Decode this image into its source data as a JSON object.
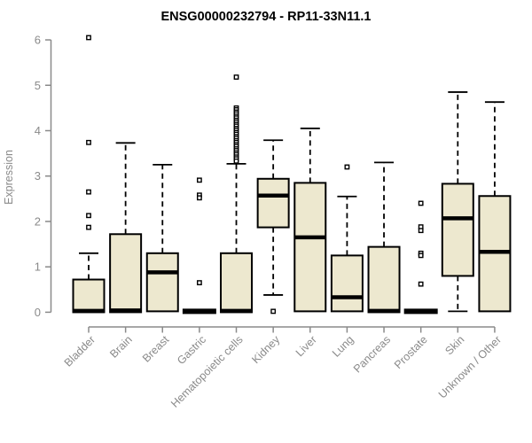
{
  "chart_data": {
    "type": "boxplot",
    "title": "ENSG00000232794 - RP11-33N11.1",
    "ylabel": "Expression",
    "ylim": [
      0,
      6
    ],
    "yticks": [
      0,
      1,
      2,
      3,
      4,
      5,
      6
    ],
    "grid": false,
    "legend": "none",
    "categories": [
      "Bladder",
      "Brain",
      "Breast",
      "Gastric",
      "Hematopoietic cells",
      "Kidney",
      "Liver",
      "Lung",
      "Pancreas",
      "Prostate",
      "Skin",
      "Unknown / Other"
    ],
    "series": [
      {
        "name": "Bladder",
        "whisker_low": 0,
        "q1": 0,
        "median": 0.03,
        "q3": 0.72,
        "whisker_high": 1.3,
        "outliers": [
          6.05,
          3.74,
          2.65,
          2.13,
          1.87
        ]
      },
      {
        "name": "Brain",
        "whisker_low": 0,
        "q1": 0,
        "median": 0.04,
        "q3": 1.72,
        "whisker_high": 3.73,
        "outliers": []
      },
      {
        "name": "Breast",
        "whisker_low": 0.02,
        "q1": 0.02,
        "median": 0.88,
        "q3": 1.3,
        "whisker_high": 3.25,
        "outliers": []
      },
      {
        "name": "Gastric",
        "whisker_low": 0.02,
        "q1": 0.02,
        "median": 0.02,
        "q3": 0.02,
        "whisker_high": 0.02,
        "outliers": [
          2.91,
          2.58,
          2.52,
          0.65
        ]
      },
      {
        "name": "Hematopoietic cells",
        "whisker_low": 0,
        "q1": 0,
        "median": 0.03,
        "q3": 1.3,
        "whisker_high": 3.27,
        "outliers": [
          5.18,
          4.5,
          4.46,
          4.41,
          4.37,
          4.32,
          4.28,
          4.23,
          4.19,
          4.14,
          4.1,
          4.05,
          4.01,
          3.96,
          3.92,
          3.87,
          3.83,
          3.78,
          3.74,
          3.69,
          3.65,
          3.6,
          3.56,
          3.51,
          3.47,
          3.42,
          3.38,
          3.33
        ]
      },
      {
        "name": "Kidney",
        "whisker_low": 0.38,
        "q1": 1.87,
        "median": 2.57,
        "q3": 2.94,
        "whisker_high": 3.79,
        "outliers": [
          0.02
        ]
      },
      {
        "name": "Liver",
        "whisker_low": 0.02,
        "q1": 0.02,
        "median": 1.65,
        "q3": 2.85,
        "whisker_high": 4.05,
        "outliers": []
      },
      {
        "name": "Lung",
        "whisker_low": 0.02,
        "q1": 0.02,
        "median": 0.33,
        "q3": 1.25,
        "whisker_high": 2.55,
        "outliers": [
          3.2
        ]
      },
      {
        "name": "Pancreas",
        "whisker_low": 0,
        "q1": 0,
        "median": 0.03,
        "q3": 1.44,
        "whisker_high": 3.3,
        "outliers": []
      },
      {
        "name": "Prostate",
        "whisker_low": 0.02,
        "q1": 0.02,
        "median": 0.02,
        "q3": 0.02,
        "whisker_high": 0.02,
        "outliers": [
          2.4,
          1.88,
          1.8,
          1.3,
          1.25,
          0.62
        ]
      },
      {
        "name": "Skin",
        "whisker_low": 0.02,
        "q1": 0.8,
        "median": 2.07,
        "q3": 2.83,
        "whisker_high": 4.85,
        "outliers": []
      },
      {
        "name": "Unknown / Other",
        "whisker_low": 0.02,
        "q1": 0.02,
        "median": 1.33,
        "q3": 2.56,
        "whisker_high": 4.63,
        "outliers": []
      }
    ],
    "colors": {
      "box_fill": "#EDE8CF",
      "box_stroke": "#000000",
      "median": "#000000",
      "whisker": "#000000",
      "outlier_fill": "#FFFFFF",
      "axis": "#8A8A8A",
      "tick_text": "#8A8A8A",
      "title_text": "#000000"
    }
  }
}
